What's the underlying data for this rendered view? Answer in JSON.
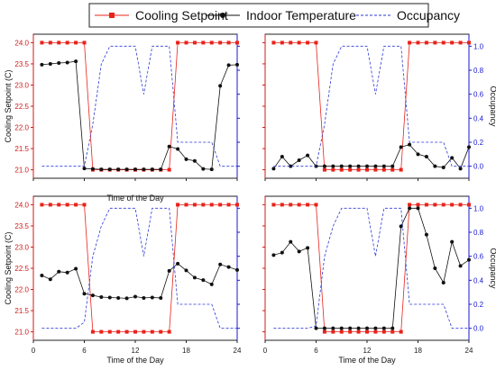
{
  "colors": {
    "setpoint": "#e8231b",
    "indoor": "#111111",
    "occupancy": "#2d3ad6",
    "axis_left": "#d11a1a",
    "axis_right": "#1a1ad1",
    "grid": "#d0d0d0"
  },
  "legend": {
    "items": [
      {
        "label": "Cooling Setpoint",
        "series": "setpoint"
      },
      {
        "label": "Indoor Temperature",
        "series": "indoor"
      },
      {
        "label": "Occupancy",
        "series": "occupancy"
      }
    ],
    "placement": "top-center"
  },
  "chart_data": [
    {
      "type": "line",
      "panel": "top-left",
      "xlabel": "Time of the Day",
      "ylabel": "Cooling Setpoint (C)",
      "y2label": "",
      "xlim": [
        0,
        24
      ],
      "ylim": [
        20.8,
        24.2
      ],
      "y2lim": [
        -0.1,
        1.1
      ],
      "xticks": [
        "",
        "",
        "",
        "",
        ""
      ],
      "yticks": [
        "24.0",
        "23.5",
        "23.0",
        "22.5",
        "22.0",
        "21.5",
        "21.0"
      ],
      "y2ticks": [],
      "x": [
        1,
        2,
        3,
        4,
        5,
        6,
        7,
        8,
        9,
        10,
        11,
        12,
        13,
        14,
        15,
        16,
        17,
        18,
        19,
        20,
        21,
        22,
        23,
        24
      ],
      "series": [
        {
          "name": "Cooling Setpoint",
          "key": "setpoint",
          "axis": "left",
          "values": [
            24,
            24,
            24,
            24,
            24,
            24,
            21,
            21,
            21,
            21,
            21,
            21,
            21,
            21,
            21,
            21,
            24,
            24,
            24,
            24,
            24,
            24,
            24,
            24
          ]
        },
        {
          "name": "Indoor Temperature",
          "key": "indoor",
          "axis": "left",
          "values": [
            23.48,
            23.5,
            23.52,
            23.53,
            23.56,
            21.03,
            21.02,
            21.01,
            21.01,
            21.01,
            21.01,
            21.01,
            21.01,
            21.01,
            21.01,
            21.55,
            21.49,
            21.25,
            21.21,
            21.02,
            21.01,
            22.98,
            23.47,
            23.48
          ]
        },
        {
          "name": "Occupancy",
          "key": "occupancy",
          "axis": "right",
          "values": [
            0,
            0,
            0,
            0,
            0,
            0,
            0.35,
            0.85,
            1,
            1,
            1,
            1,
            0.6,
            1,
            1,
            1,
            0.2,
            0.2,
            0.2,
            0.2,
            0.2,
            0,
            0,
            0
          ]
        }
      ]
    },
    {
      "type": "line",
      "panel": "top-right",
      "xlabel": "",
      "ylabel": "",
      "y2label": "Occupancy",
      "xlim": [
        0,
        24
      ],
      "ylim": [
        20.8,
        24.2
      ],
      "y2lim": [
        -0.1,
        1.1
      ],
      "xticks": [
        "",
        "",
        "",
        "",
        ""
      ],
      "yticks": [],
      "y2ticks": [
        "1.0",
        "0.8",
        "0.6",
        "0.4",
        "0.2",
        "0.0"
      ],
      "x": [
        1,
        2,
        3,
        4,
        5,
        6,
        7,
        8,
        9,
        10,
        11,
        12,
        13,
        14,
        15,
        16,
        17,
        18,
        19,
        20,
        21,
        22,
        23,
        24
      ],
      "series": [
        {
          "name": "Cooling Setpoint",
          "key": "setpoint",
          "axis": "left",
          "values": [
            24,
            24,
            24,
            24,
            24,
            24,
            21,
            21,
            21,
            21,
            21,
            21,
            21,
            21,
            21,
            21,
            24,
            24,
            24,
            24,
            24,
            24,
            24,
            24
          ]
        },
        {
          "name": "Indoor Temperature",
          "key": "indoor",
          "axis": "right",
          "values": [
            -0.02,
            0.08,
            0.0,
            0.05,
            0.09,
            0.0,
            0.0,
            0.0,
            0.0,
            0.0,
            0.0,
            0.0,
            0.0,
            0.0,
            0.0,
            0.16,
            0.18,
            0.1,
            0.08,
            0.0,
            -0.01,
            0.07,
            -0.02,
            0.16
          ]
        },
        {
          "name": "Occupancy",
          "key": "occupancy",
          "axis": "right",
          "values": [
            0,
            0,
            0,
            0,
            0,
            0,
            0.35,
            0.85,
            1,
            1,
            1,
            1,
            0.6,
            1,
            1,
            1,
            0.2,
            0.2,
            0.2,
            0.2,
            0.2,
            0,
            0,
            0
          ]
        }
      ]
    },
    {
      "type": "line",
      "panel": "bottom-left",
      "xlabel": "Time of the Day",
      "ylabel": "Cooling Setpoint (C)",
      "y2label": "",
      "xlim": [
        0,
        24
      ],
      "ylim": [
        20.8,
        24.2
      ],
      "y2lim": [
        -0.1,
        1.1
      ],
      "xticks": [
        "0",
        "6",
        "12",
        "18",
        "24"
      ],
      "yticks": [
        "24.0",
        "23.5",
        "23.0",
        "22.5",
        "22.0",
        "21.5",
        "21.0"
      ],
      "y2ticks": [],
      "x": [
        1,
        2,
        3,
        4,
        5,
        6,
        7,
        8,
        9,
        10,
        11,
        12,
        13,
        14,
        15,
        16,
        17,
        18,
        19,
        20,
        21,
        22,
        23,
        24
      ],
      "series": [
        {
          "name": "Cooling Setpoint",
          "key": "setpoint",
          "axis": "left",
          "values": [
            24,
            24,
            24,
            24,
            24,
            24,
            21,
            21,
            21,
            21,
            21,
            21,
            21,
            21,
            21,
            21,
            24,
            24,
            24,
            24,
            24,
            24,
            24,
            24
          ]
        },
        {
          "name": "Indoor Temperature",
          "key": "indoor",
          "axis": "left",
          "values": [
            22.33,
            22.24,
            22.42,
            22.4,
            22.49,
            21.9,
            21.86,
            21.82,
            21.81,
            21.8,
            21.79,
            21.83,
            21.8,
            21.81,
            21.8,
            22.44,
            22.61,
            22.45,
            22.28,
            22.22,
            22.12,
            22.59,
            22.53,
            22.46
          ]
        },
        {
          "name": "Occupancy",
          "key": "occupancy",
          "axis": "right",
          "values": [
            0,
            0,
            0,
            0,
            0,
            0.05,
            0.6,
            0.85,
            1,
            1,
            1,
            1,
            0.6,
            1,
            1,
            1,
            0.2,
            0.2,
            0.2,
            0.2,
            0.2,
            0,
            0,
            0
          ]
        }
      ]
    },
    {
      "type": "line",
      "panel": "bottom-right",
      "xlabel": "Time of the Day",
      "ylabel": "",
      "y2label": "Occupancy",
      "xlim": [
        0,
        24
      ],
      "ylim": [
        20.8,
        24.2
      ],
      "y2lim": [
        -0.1,
        1.1
      ],
      "xticks": [
        "0",
        "6",
        "12",
        "18",
        "24"
      ],
      "yticks": [],
      "y2ticks": [
        "1.0",
        "0.8",
        "0.6",
        "0.4",
        "0.2",
        "0.0"
      ],
      "x": [
        1,
        2,
        3,
        4,
        5,
        6,
        7,
        8,
        9,
        10,
        11,
        12,
        13,
        14,
        15,
        16,
        17,
        18,
        19,
        20,
        21,
        22,
        23,
        24
      ],
      "series": [
        {
          "name": "Cooling Setpoint",
          "key": "setpoint",
          "axis": "left",
          "values": [
            24,
            24,
            24,
            24,
            24,
            24,
            21,
            21,
            21,
            21,
            21,
            21,
            21,
            21,
            21,
            21,
            24,
            24,
            24,
            24,
            24,
            24,
            24,
            24
          ]
        },
        {
          "name": "Indoor Temperature",
          "key": "indoor",
          "axis": "right",
          "values": [
            0.61,
            0.63,
            0.72,
            0.64,
            0.67,
            0.0,
            0.0,
            0.0,
            0.0,
            0.0,
            0.0,
            0.0,
            0.0,
            0.0,
            0.0,
            0.85,
            1.0,
            1.0,
            0.78,
            0.5,
            0.38,
            0.72,
            0.52,
            0.57
          ]
        },
        {
          "name": "Occupancy",
          "key": "occupancy",
          "axis": "right",
          "values": [
            0,
            0,
            0,
            0,
            0,
            0.02,
            0.6,
            0.85,
            1,
            1,
            1,
            1,
            0.6,
            1,
            1,
            1,
            0.2,
            0.2,
            0.2,
            0.2,
            0.2,
            0,
            0,
            0
          ]
        }
      ]
    }
  ]
}
